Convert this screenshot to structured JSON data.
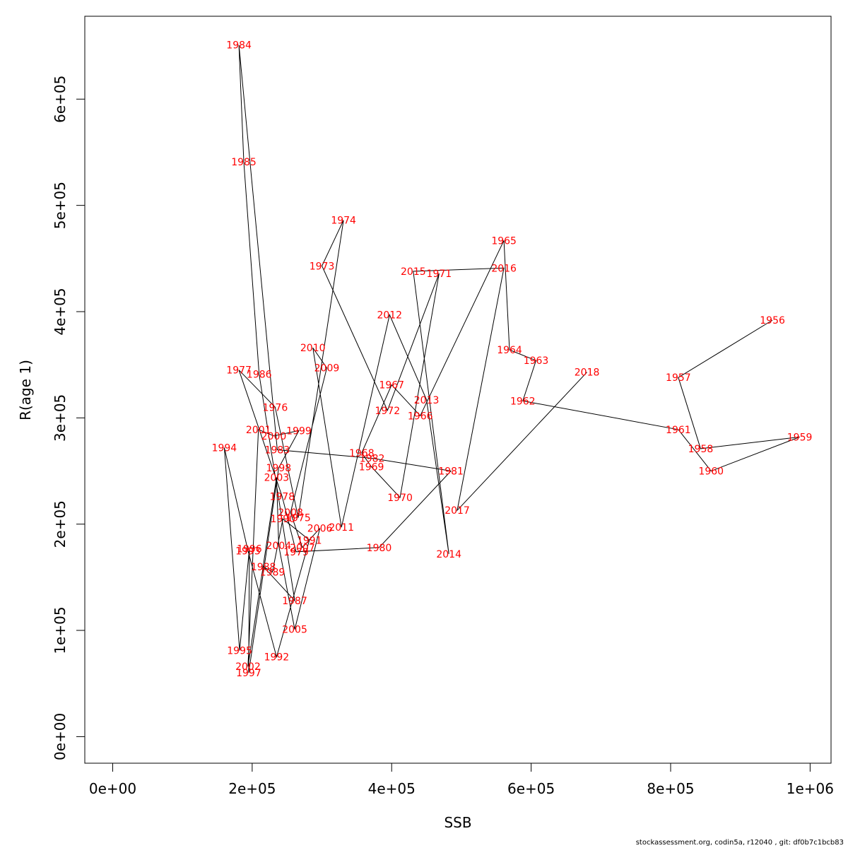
{
  "chart_data": {
    "type": "line",
    "title": "",
    "xlabel": "SSB",
    "ylabel": "R(age 1)",
    "xlim": [
      -40000,
      1030000
    ],
    "ylim": [
      -25000,
      678000
    ],
    "xticks": [
      0,
      200000,
      400000,
      600000,
      800000,
      1000000
    ],
    "xtick_labels": [
      "0e+00",
      "2e+05",
      "4e+05",
      "6e+05",
      "8e+05",
      "1e+06"
    ],
    "yticks": [
      0,
      100000,
      200000,
      300000,
      400000,
      500000,
      600000
    ],
    "ytick_labels": [
      "0e+00",
      "1e+05",
      "2e+05",
      "3e+05",
      "4e+05",
      "5e+05",
      "6e+05"
    ],
    "grid": false,
    "label_color": "#ff0000",
    "line_color": "#000000",
    "points": [
      {
        "year": "1956",
        "x": 946000,
        "y": 392000
      },
      {
        "year": "1957",
        "x": 811000,
        "y": 338000
      },
      {
        "year": "1958",
        "x": 843000,
        "y": 271000
      },
      {
        "year": "1959",
        "x": 985000,
        "y": 282000
      },
      {
        "year": "1960",
        "x": 858000,
        "y": 250000
      },
      {
        "year": "1961",
        "x": 811000,
        "y": 289000
      },
      {
        "year": "1962",
        "x": 588000,
        "y": 316000
      },
      {
        "year": "1963",
        "x": 607000,
        "y": 354000
      },
      {
        "year": "1964",
        "x": 569000,
        "y": 364000
      },
      {
        "year": "1965",
        "x": 561000,
        "y": 467000
      },
      {
        "year": "1966",
        "x": 441000,
        "y": 302000
      },
      {
        "year": "1967",
        "x": 400000,
        "y": 331000
      },
      {
        "year": "1968",
        "x": 357000,
        "y": 267000
      },
      {
        "year": "1969",
        "x": 371000,
        "y": 254000
      },
      {
        "year": "1970",
        "x": 412000,
        "y": 225000
      },
      {
        "year": "1971",
        "x": 468000,
        "y": 436000
      },
      {
        "year": "1972",
        "x": 394000,
        "y": 307000
      },
      {
        "year": "1973",
        "x": 300000,
        "y": 443000
      },
      {
        "year": "1974",
        "x": 331000,
        "y": 486000
      },
      {
        "year": "1975",
        "x": 266000,
        "y": 206000
      },
      {
        "year": "1976",
        "x": 233000,
        "y": 310000
      },
      {
        "year": "1977",
        "x": 181000,
        "y": 345000
      },
      {
        "year": "1978",
        "x": 243000,
        "y": 226000
      },
      {
        "year": "1979",
        "x": 263000,
        "y": 174000
      },
      {
        "year": "1980",
        "x": 382000,
        "y": 178000
      },
      {
        "year": "1981",
        "x": 485000,
        "y": 250000
      },
      {
        "year": "1982",
        "x": 372000,
        "y": 262000
      },
      {
        "year": "1983",
        "x": 236000,
        "y": 270000
      },
      {
        "year": "1984",
        "x": 181000,
        "y": 651000
      },
      {
        "year": "1985",
        "x": 188000,
        "y": 541000
      },
      {
        "year": "1986",
        "x": 210000,
        "y": 341000
      },
      {
        "year": "1987",
        "x": 261000,
        "y": 128000
      },
      {
        "year": "1988",
        "x": 216000,
        "y": 160000
      },
      {
        "year": "1989",
        "x": 229000,
        "y": 155000
      },
      {
        "year": "1990",
        "x": 244000,
        "y": 205000
      },
      {
        "year": "1991",
        "x": 282000,
        "y": 185000
      },
      {
        "year": "1992",
        "x": 235000,
        "y": 75000
      },
      {
        "year": "1993",
        "x": 194000,
        "y": 175000
      },
      {
        "year": "1994",
        "x": 160000,
        "y": 272000
      },
      {
        "year": "1995",
        "x": 182000,
        "y": 81000
      },
      {
        "year": "1996",
        "x": 196000,
        "y": 177000
      },
      {
        "year": "1997",
        "x": 195000,
        "y": 60000
      },
      {
        "year": "1998",
        "x": 238000,
        "y": 253000
      },
      {
        "year": "1999",
        "x": 267000,
        "y": 288000
      },
      {
        "year": "2000",
        "x": 231000,
        "y": 283000
      },
      {
        "year": "2001",
        "x": 209000,
        "y": 289000
      },
      {
        "year": "2002",
        "x": 194000,
        "y": 66000
      },
      {
        "year": "2003",
        "x": 235000,
        "y": 244000
      },
      {
        "year": "2004",
        "x": 238000,
        "y": 180000
      },
      {
        "year": "2005",
        "x": 261000,
        "y": 101000
      },
      {
        "year": "2006",
        "x": 297000,
        "y": 196000
      },
      {
        "year": "2007",
        "x": 272000,
        "y": 178000
      },
      {
        "year": "2008",
        "x": 255000,
        "y": 211000
      },
      {
        "year": "2009",
        "x": 307000,
        "y": 347000
      },
      {
        "year": "2010",
        "x": 287000,
        "y": 366000
      },
      {
        "year": "2011",
        "x": 328000,
        "y": 197000
      },
      {
        "year": "2012",
        "x": 397000,
        "y": 397000
      },
      {
        "year": "2013",
        "x": 450000,
        "y": 317000
      },
      {
        "year": "2014",
        "x": 482000,
        "y": 172000
      },
      {
        "year": "2015",
        "x": 431000,
        "y": 438000
      },
      {
        "year": "2016",
        "x": 561000,
        "y": 441000
      },
      {
        "year": "2017",
        "x": 494000,
        "y": 213000
      },
      {
        "year": "2018",
        "x": 680000,
        "y": 343000
      }
    ]
  },
  "footer": {
    "text": "stockassessment.org, codin5a, r12040 , git: df0b7c1bcb83"
  }
}
